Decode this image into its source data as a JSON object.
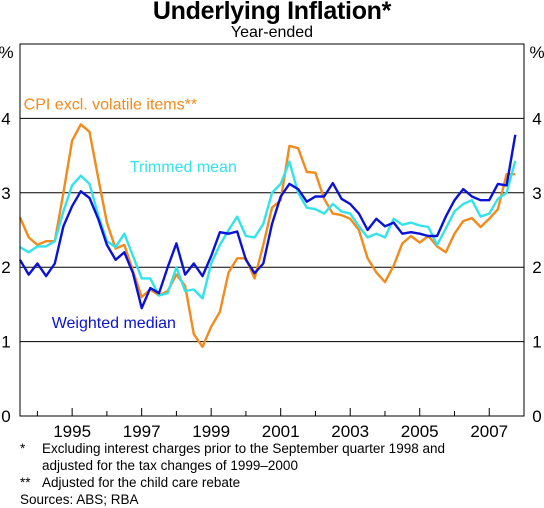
{
  "chart_data": {
    "type": "line",
    "title": "Underlying Inflation*",
    "subtitle": "Year-ended",
    "ylabel_left": "%",
    "ylabel_right": "%",
    "ylim": [
      0,
      5
    ],
    "yticks": [
      0,
      1,
      2,
      3,
      4
    ],
    "xlim": [
      1993.5,
      2008.0
    ],
    "xtick_labels": [
      "1995",
      "1997",
      "1999",
      "2001",
      "2003",
      "2005",
      "2007"
    ],
    "xtick_values": [
      1995,
      1997,
      1999,
      2001,
      2003,
      2005,
      2007
    ],
    "grid": true,
    "series": [
      {
        "name": "CPI excl. volatile items**",
        "color": "#f28a1c",
        "x": [
          1993.5,
          1993.75,
          1994.0,
          1994.25,
          1994.5,
          1994.75,
          1995.0,
          1995.25,
          1995.5,
          1995.75,
          1996.0,
          1996.25,
          1996.5,
          1996.75,
          1997.0,
          1997.25,
          1997.5,
          1997.75,
          1998.0,
          1998.25,
          1998.5,
          1998.75,
          1999.0,
          1999.25,
          1999.5,
          1999.75,
          2000.0,
          2000.25,
          2000.5,
          2000.75,
          2001.0,
          2001.25,
          2001.5,
          2001.75,
          2002.0,
          2002.25,
          2002.5,
          2002.75,
          2003.0,
          2003.25,
          2003.5,
          2003.75,
          2004.0,
          2004.25,
          2004.5,
          2004.75,
          2005.0,
          2005.25,
          2005.5,
          2005.75,
          2006.0,
          2006.25,
          2006.5,
          2006.75,
          2007.0,
          2007.25,
          2007.5,
          2007.75
        ],
        "y": [
          2.67,
          2.4,
          2.3,
          2.35,
          2.35,
          3.0,
          3.7,
          3.92,
          3.82,
          3.2,
          2.6,
          2.25,
          2.3,
          1.95,
          1.6,
          1.7,
          1.62,
          1.68,
          1.9,
          1.75,
          1.1,
          0.93,
          1.2,
          1.4,
          1.93,
          2.12,
          2.12,
          1.85,
          2.3,
          2.8,
          2.9,
          3.63,
          3.6,
          3.28,
          3.27,
          2.92,
          2.72,
          2.7,
          2.65,
          2.5,
          2.12,
          1.93,
          1.8,
          2.02,
          2.32,
          2.42,
          2.33,
          2.42,
          2.28,
          2.2,
          2.45,
          2.62,
          2.66,
          2.54,
          2.65,
          2.78,
          3.25,
          3.25
        ]
      },
      {
        "name": "Trimmed mean",
        "color": "#33e3eb",
        "x": [
          1993.5,
          1993.75,
          1994.0,
          1994.25,
          1994.5,
          1994.75,
          1995.0,
          1995.25,
          1995.5,
          1995.75,
          1996.0,
          1996.25,
          1996.5,
          1996.75,
          1997.0,
          1997.25,
          1997.5,
          1997.75,
          1998.0,
          1998.25,
          1998.5,
          1998.75,
          1999.0,
          1999.25,
          1999.5,
          1999.75,
          2000.0,
          2000.25,
          2000.5,
          2000.75,
          2001.0,
          2001.25,
          2001.5,
          2001.75,
          2002.0,
          2002.25,
          2002.5,
          2002.75,
          2003.0,
          2003.25,
          2003.5,
          2003.75,
          2004.0,
          2004.25,
          2004.5,
          2004.75,
          2005.0,
          2005.25,
          2005.5,
          2005.75,
          2006.0,
          2006.25,
          2006.5,
          2006.75,
          2007.0,
          2007.25,
          2007.5,
          2007.75
        ],
        "y": [
          2.27,
          2.2,
          2.28,
          2.28,
          2.35,
          2.75,
          3.1,
          3.23,
          3.12,
          2.7,
          2.35,
          2.27,
          2.45,
          2.15,
          1.85,
          1.85,
          1.62,
          1.65,
          2.0,
          1.68,
          1.7,
          1.58,
          2.05,
          2.3,
          2.5,
          2.68,
          2.42,
          2.4,
          2.58,
          3.0,
          3.12,
          3.42,
          3.0,
          2.8,
          2.78,
          2.72,
          2.85,
          2.75,
          2.72,
          2.55,
          2.4,
          2.45,
          2.4,
          2.65,
          2.57,
          2.6,
          2.56,
          2.54,
          2.3,
          2.52,
          2.75,
          2.85,
          2.9,
          2.68,
          2.72,
          2.92,
          3.0,
          3.43
        ]
      },
      {
        "name": "Weighted median",
        "color": "#0a12d6",
        "x": [
          1993.5,
          1993.75,
          1994.0,
          1994.25,
          1994.5,
          1994.75,
          1995.0,
          1995.25,
          1995.5,
          1995.75,
          1996.0,
          1996.25,
          1996.5,
          1996.75,
          1997.0,
          1997.25,
          1997.5,
          1997.75,
          1998.0,
          1998.25,
          1998.5,
          1998.75,
          1999.0,
          1999.25,
          1999.5,
          1999.75,
          2000.0,
          2000.25,
          2000.5,
          2000.75,
          2001.0,
          2001.25,
          2001.5,
          2001.75,
          2002.0,
          2002.25,
          2002.5,
          2002.75,
          2003.0,
          2003.25,
          2003.5,
          2003.75,
          2004.0,
          2004.25,
          2004.5,
          2004.75,
          2005.0,
          2005.25,
          2005.5,
          2005.75,
          2006.0,
          2006.25,
          2006.5,
          2006.75,
          2007.0,
          2007.25,
          2007.5,
          2007.75
        ],
        "y": [
          2.1,
          1.9,
          2.05,
          1.88,
          2.05,
          2.55,
          2.82,
          3.02,
          2.93,
          2.65,
          2.3,
          2.1,
          2.2,
          1.92,
          1.45,
          1.72,
          1.65,
          2.0,
          2.32,
          1.9,
          2.05,
          1.88,
          2.15,
          2.47,
          2.45,
          2.48,
          2.1,
          1.92,
          2.05,
          2.58,
          2.95,
          3.12,
          3.05,
          2.88,
          2.95,
          2.95,
          3.13,
          2.92,
          2.85,
          2.72,
          2.5,
          2.65,
          2.55,
          2.6,
          2.45,
          2.47,
          2.45,
          2.42,
          2.42,
          2.68,
          2.9,
          3.05,
          2.95,
          2.9,
          2.9,
          3.12,
          3.1,
          3.78
        ]
      }
    ],
    "annotations": [
      {
        "text": "CPI excl. volatile items**",
        "color": "#f28a1c",
        "x": 1996.1,
        "y": 4.12
      },
      {
        "text": "Trimmed mean",
        "color": "#33e3eb",
        "x": 1998.2,
        "y": 3.28
      },
      {
        "text": "Weighted median",
        "color": "#0a12d6",
        "x": 1996.2,
        "y": 1.18
      }
    ],
    "colors": {
      "grid": "#000000",
      "axis": "#000000"
    }
  },
  "footnotes": {
    "note1_mark": "*",
    "note1_line1": "Excluding interest charges prior to the September quarter 1998 and",
    "note1_line2": "adjusted for the tax changes of 1999–2000",
    "note2_mark": "**",
    "note2_text": "Adjusted for the child care rebate",
    "sources": "Sources: ABS; RBA"
  }
}
